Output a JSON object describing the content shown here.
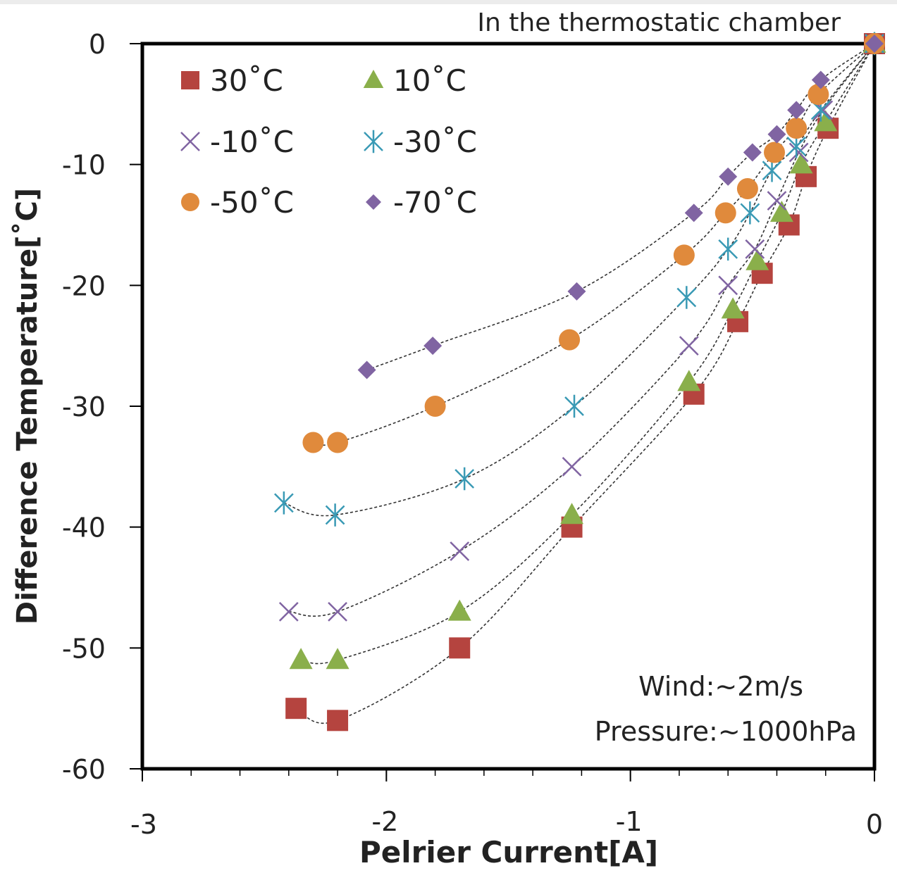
{
  "chart_data": {
    "type": "scatter",
    "title": "In the thermostatic chamber",
    "xlabel": "Pelrier Current[A]",
    "ylabel": "Difference Temperature[˚C]",
    "xlim": [
      -3,
      0
    ],
    "ylim": [
      -60,
      0
    ],
    "x_ticks": [
      -3,
      -2,
      -1,
      0
    ],
    "y_ticks": [
      0,
      -10,
      -20,
      -30,
      -40,
      -50,
      -60
    ],
    "x_tick_labels": [
      "-3",
      "-2",
      "-1",
      "0"
    ],
    "y_tick_labels": [
      "0",
      "-10",
      "-20",
      "-30",
      "-40",
      "-50",
      "-60"
    ],
    "grid": false,
    "legend_position": "top-left",
    "annotations": [
      "Wind:~2m/s",
      "Pressure:~1000hPa"
    ],
    "series": [
      {
        "name": "30˚C",
        "marker": "square",
        "color": "#b5443f",
        "x": [
          -2.37,
          -2.2,
          -1.7,
          -1.24,
          -0.74,
          -0.56,
          -0.46,
          -0.35,
          -0.28,
          -0.19,
          0
        ],
        "y": [
          -55,
          -56,
          -50,
          -40,
          -29,
          -23,
          -19,
          -15,
          -11,
          -7,
          0
        ]
      },
      {
        "name": "10˚C",
        "marker": "triangle",
        "color": "#8aaf4b",
        "x": [
          -2.35,
          -2.2,
          -1.7,
          -1.24,
          -0.76,
          -0.58,
          -0.48,
          -0.38,
          -0.3,
          -0.2,
          0
        ],
        "y": [
          -51,
          -51,
          -47,
          -39,
          -28,
          -22,
          -18,
          -14,
          -10,
          -6.5,
          0
        ]
      },
      {
        "name": "-10˚C",
        "marker": "x",
        "color": "#8064a2",
        "x": [
          -2.4,
          -2.2,
          -1.7,
          -1.24,
          -0.76,
          -0.6,
          -0.49,
          -0.4,
          -0.31,
          -0.21,
          0
        ],
        "y": [
          -47,
          -47,
          -42,
          -35,
          -25,
          -20,
          -17,
          -13,
          -9,
          -5.5,
          0
        ]
      },
      {
        "name": "-30˚C",
        "marker": "asterisk",
        "color": "#3a9ab5",
        "x": [
          -2.42,
          -2.21,
          -1.68,
          -1.23,
          -0.77,
          -0.6,
          -0.51,
          -0.42,
          -0.32,
          -0.22,
          0
        ],
        "y": [
          -38,
          -39,
          -36,
          -30,
          -21,
          -17,
          -14,
          -10.5,
          -8.5,
          -5.5,
          0
        ]
      },
      {
        "name": "-50˚C",
        "marker": "circle",
        "color": "#e08a3c",
        "x": [
          -2.3,
          -2.2,
          -1.8,
          -1.25,
          -0.78,
          -0.61,
          -0.52,
          -0.41,
          -0.32,
          -0.23,
          0
        ],
        "y": [
          -33,
          -33,
          -30,
          -24.5,
          -17.5,
          -14,
          -12,
          -9,
          -7,
          -4.2,
          0
        ]
      },
      {
        "name": "-70˚C",
        "marker": "diamond",
        "color": "#8064a2",
        "x": [
          -2.08,
          -1.81,
          -1.22,
          -0.74,
          -0.6,
          -0.5,
          -0.4,
          -0.32,
          -0.22,
          0
        ],
        "y": [
          -27,
          -25,
          -20.5,
          -14,
          -11,
          -9,
          -7.5,
          -5.5,
          -3,
          0
        ]
      }
    ]
  }
}
